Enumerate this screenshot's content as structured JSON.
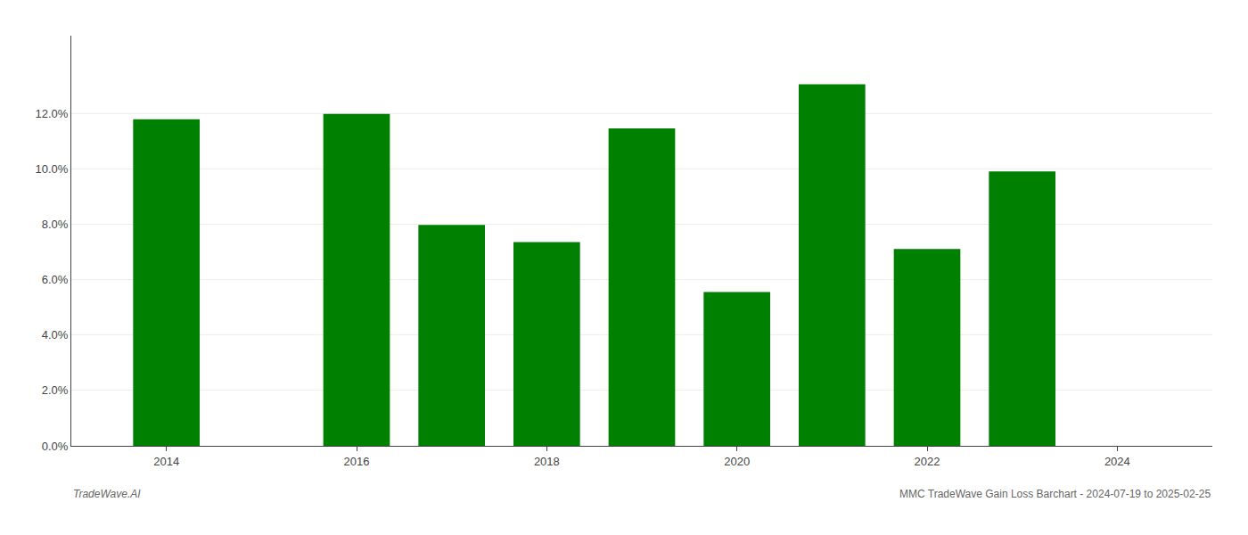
{
  "chart_data": {
    "type": "bar",
    "x": [
      2014,
      2016,
      2017,
      2018,
      2019,
      2020,
      2021,
      2022,
      2023
    ],
    "values": [
      0.1178,
      0.1198,
      0.0797,
      0.0735,
      0.1145,
      0.0555,
      0.1305,
      0.071,
      0.099
    ],
    "color": "#008000",
    "xlim": [
      2013.0,
      2025.0
    ],
    "xticks": [
      2014,
      2016,
      2018,
      2020,
      2022,
      2024
    ],
    "ylim": [
      0,
      0.148
    ],
    "yticks": [
      {
        "value": 0.0,
        "label": "0.0%"
      },
      {
        "value": 0.02,
        "label": "2.0%"
      },
      {
        "value": 0.04,
        "label": "4.0%"
      },
      {
        "value": 0.06,
        "label": "6.0%"
      },
      {
        "value": 0.08,
        "label": "8.0%"
      },
      {
        "value": 0.1,
        "label": "10.0%"
      },
      {
        "value": 0.12,
        "label": "12.0%"
      }
    ],
    "grid": true,
    "annotations": [
      "TradeWave.AI",
      "MMC TradeWave Gain Loss Barchart - 2024-07-19 to 2025-02-25"
    ]
  }
}
